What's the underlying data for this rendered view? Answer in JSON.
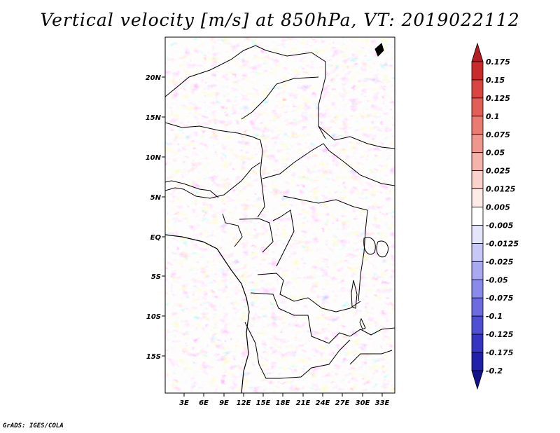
{
  "title": "Vertical velocity [m/s] at 850hPa, VT: 2019022112",
  "credit": "GrADS: IGES/COLA",
  "lat_labels": [
    "20N",
    "15N",
    "10N",
    "5N",
    "EQ",
    "5S",
    "10S",
    "15S"
  ],
  "lon_labels": [
    "3E",
    "6E",
    "9E",
    "12E",
    "15E",
    "18E",
    "21E",
    "24E",
    "27E",
    "30E",
    "33E"
  ],
  "colorbar": {
    "labels": [
      "0.175",
      "0.15",
      "0.125",
      "0.1",
      "0.075",
      "0.05",
      "0.025",
      "0.0125",
      "0.005",
      "-0.005",
      "-0.0125",
      "-0.025",
      "-0.05",
      "-0.075",
      "-0.1",
      "-0.125",
      "-0.175",
      "-0.2"
    ],
    "colors": [
      "#b11d20",
      "#c92a2c",
      "#d94543",
      "#e25e58",
      "#e97b73",
      "#ef978e",
      "#f4b4ab",
      "#f8d2cb",
      "#fcebe7",
      "#ffffff",
      "#e4e4fb",
      "#c8c8f6",
      "#a9a9f0",
      "#8a8aea",
      "#6c6ce0",
      "#4f4fd3",
      "#3535c2",
      "#2020a8",
      "#12128a"
    ]
  }
}
